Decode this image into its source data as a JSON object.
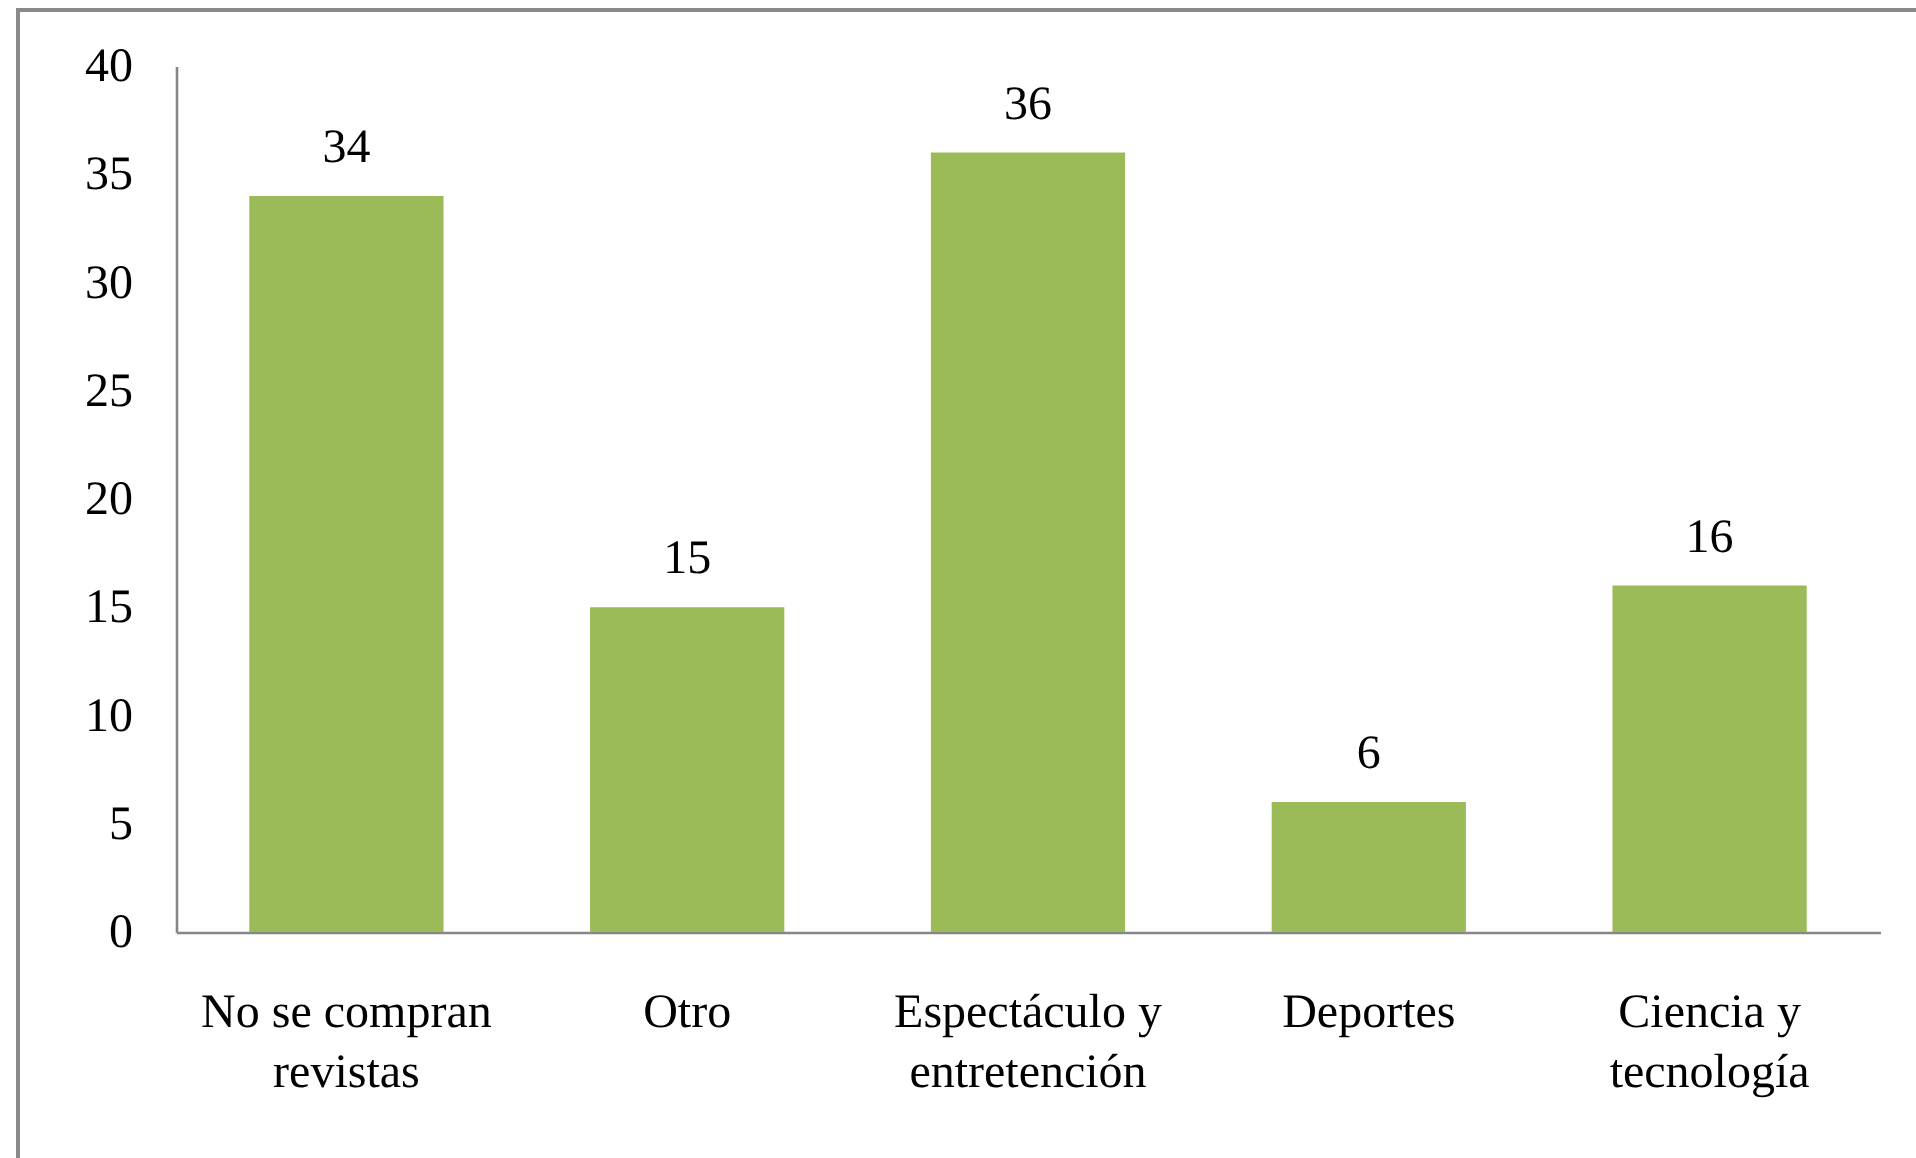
{
  "chart_data": {
    "type": "bar",
    "categories": [
      "No se compran revistas",
      "Otro",
      "Espectáculo y entretención",
      "Deportes",
      "Ciencia y tecnología"
    ],
    "values": [
      34,
      15,
      36,
      6,
      16
    ],
    "color": "#9bbb59",
    "ylim": [
      0,
      40
    ],
    "yticks": [
      0,
      5,
      10,
      15,
      20,
      25,
      30,
      35,
      40
    ],
    "data_labels": true
  }
}
